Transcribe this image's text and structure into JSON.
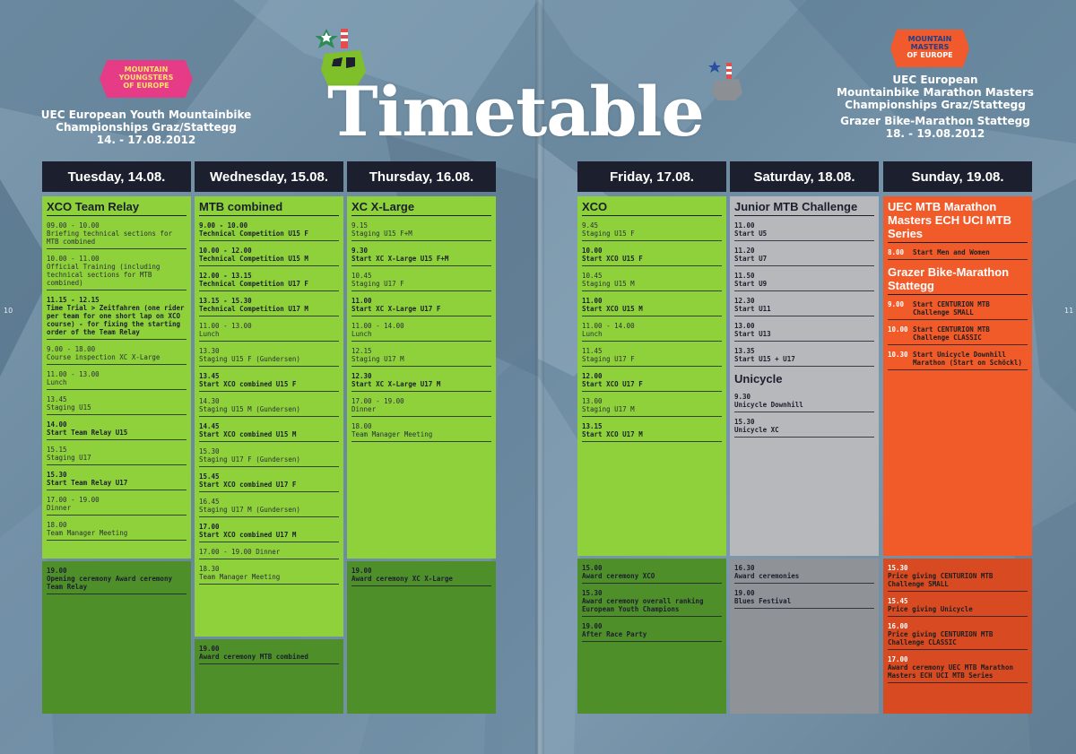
{
  "page_numbers": {
    "left": "10",
    "right": "11"
  },
  "left_badge": {
    "line1": "MOUNTAIN",
    "line2": "YOUNGSTERS",
    "line3": "OF EUROPE"
  },
  "right_badge": {
    "line1": "MOUNTAIN",
    "line2": "MASTERS",
    "line3": "OF EUROPE"
  },
  "left_event": {
    "line1": "UEC European Youth Mountainbike",
    "line2": "Championships Graz/Stattegg",
    "line3": "14. - 17.08.2012"
  },
  "right_event": {
    "line1": "UEC European",
    "line2": "Mountainbike Marathon Masters",
    "line3": "Championships Graz/Stattegg",
    "line4": "Grazer Bike-Marathon Stattegg",
    "line5": "18. - 19.08.2012"
  },
  "title": "Timetable",
  "colors": {
    "green_light": "#8fd13a",
    "green_dark": "#4f8f2a",
    "grey": "#b6b8bb",
    "orange": "#f15b2a",
    "header": "#1b1f2e"
  },
  "days": [
    {
      "label": "Tuesday, 14.08.",
      "title": "XCO Team Relay",
      "entries": [
        {
          "time": "09.00 - 10.00",
          "text": "Briefing technical sections for MTB combined",
          "bold": false
        },
        {
          "time": "10.00 - 11.00",
          "text": "Official Training (including technical sections for MTB combined)",
          "bold": false
        },
        {
          "time": "11.15 - 12.15",
          "text": "Time Trial > Zeitfahren (one rider per team for one short lap on XCO course) - for fixing the starting order of the Team Relay",
          "bold": true
        },
        {
          "time": "9.00 - 18.00",
          "text": "Course inspection XC X-Large",
          "bold": false
        },
        {
          "time": "11.00 - 13.00",
          "text": "Lunch",
          "bold": false
        },
        {
          "time": "13.45",
          "text": "Staging U15",
          "bold": false
        },
        {
          "time": "14.00",
          "text": "Start Team Relay U15",
          "bold": true
        },
        {
          "time": "15.15",
          "text": "Staging U17",
          "bold": false
        },
        {
          "time": "15.30",
          "text": "Start Team Relay U17",
          "bold": true
        },
        {
          "time": "17.00 - 19.00",
          "text": "Dinner",
          "bold": false
        },
        {
          "time": "18.00",
          "text": "Team Manager Meeting",
          "bold": false
        }
      ],
      "evening": [
        {
          "time": "19.00",
          "text": "Opening ceremony Award ceremony Team Relay",
          "bold": true
        }
      ]
    },
    {
      "label": "Wednesday, 15.08.",
      "title": "MTB combined",
      "entries": [
        {
          "time": "9.00 - 10.00",
          "text": "Technical Competition U15 F",
          "bold": true
        },
        {
          "time": "10.00 - 12.00",
          "text": "Technical Competition U15 M",
          "bold": true
        },
        {
          "time": "12.00 - 13.15",
          "text": "Technical Competition U17 F",
          "bold": true
        },
        {
          "time": "13.15 - 15.30",
          "text": "Technical Competition U17 M",
          "bold": true
        },
        {
          "time": "11.00 - 13.00",
          "text": "Lunch",
          "bold": false
        },
        {
          "time": "13.30",
          "text": "Staging U15 F (Gundersen)",
          "bold": false
        },
        {
          "time": "13.45",
          "text": "Start XCO combined U15 F",
          "bold": true
        },
        {
          "time": "14.30",
          "text": "Staging U15 M (Gundersen)",
          "bold": false
        },
        {
          "time": "14.45",
          "text": "Start XCO combined U15 M",
          "bold": true
        },
        {
          "time": "15.30",
          "text": "Staging U17 F (Gundersen)",
          "bold": false
        },
        {
          "time": "15.45",
          "text": "Start XCO combined U17 F",
          "bold": true
        },
        {
          "time": "16.45",
          "text": "Staging U17 M (Gundersen)",
          "bold": false
        },
        {
          "time": "17.00",
          "text": "Start XCO combined U17 M",
          "bold": true
        },
        {
          "time": "17.00 - 19.00",
          "text": "Dinner",
          "bold": false,
          "inline": true
        },
        {
          "time": "18.30",
          "text": "Team Manager Meeting",
          "bold": false
        }
      ],
      "evening": [
        {
          "time": "19.00",
          "text": "Award ceremony MTB combined",
          "bold": true
        }
      ]
    },
    {
      "label": "Thursday, 16.08.",
      "title": "XC X-Large",
      "entries": [
        {
          "time": "9.15",
          "text": "Staging U15 F+M",
          "bold": false
        },
        {
          "time": "9.30",
          "text": "Start XC X-Large U15 F+M",
          "bold": true
        },
        {
          "time": "10.45",
          "text": "Staging U17 F",
          "bold": false
        },
        {
          "time": "11.00",
          "text": "Start XC X-Large U17 F",
          "bold": true
        },
        {
          "time": "11.00 - 14.00",
          "text": "Lunch",
          "bold": false
        },
        {
          "time": "12.15",
          "text": "Staging U17 M",
          "bold": false
        },
        {
          "time": "12.30",
          "text": "Start XC X-Large U17 M",
          "bold": true
        },
        {
          "time": "17.00 - 19.00",
          "text": "Dinner",
          "bold": false
        },
        {
          "time": "18.00",
          "text": "Team Manager Meeting",
          "bold": false
        }
      ],
      "evening": [
        {
          "time": "19.00",
          "text": "Award ceremony XC X-Large",
          "bold": true
        }
      ]
    },
    {
      "label": "Friday, 17.08.",
      "title": "XCO",
      "entries": [
        {
          "time": "9.45",
          "text": "Staging U15 F",
          "bold": false
        },
        {
          "time": "10.00",
          "text": "Start XCO U15 F",
          "bold": true
        },
        {
          "time": "10.45",
          "text": "Staging U15 M",
          "bold": false
        },
        {
          "time": "11.00",
          "text": "Start XCO U15 M",
          "bold": true
        },
        {
          "time": "11.00 - 14.00",
          "text": "Lunch",
          "bold": false
        },
        {
          "time": "11.45",
          "text": "Staging U17 F",
          "bold": false
        },
        {
          "time": "12.00",
          "text": "Start XCO U17 F",
          "bold": true
        },
        {
          "time": "13.00",
          "text": "Staging U17 M",
          "bold": false
        },
        {
          "time": "13.15",
          "text": "Start XCO U17 M",
          "bold": true
        }
      ],
      "evening": [
        {
          "time": "15.00",
          "text": "Award ceremony XCO",
          "bold": true
        },
        {
          "time": "15.30",
          "text": "Award ceremony overall ranking European Youth Champions",
          "bold": true
        },
        {
          "time": "19.00",
          "text": "After Race Party",
          "bold": true
        }
      ]
    },
    {
      "label": "Saturday, 18.08.",
      "title": "Junior MTB Challenge",
      "entries": [
        {
          "time": "11.00",
          "text": "Start U5",
          "bold": true
        },
        {
          "time": "11.20",
          "text": "Start U7",
          "bold": true
        },
        {
          "time": "11.50",
          "text": "Start U9",
          "bold": true
        },
        {
          "time": "12.30",
          "text": "Start U11",
          "bold": true
        },
        {
          "time": "13.00",
          "text": "Start U13",
          "bold": true
        },
        {
          "time": "13.35",
          "text": "Start U15 + U17",
          "bold": true
        }
      ],
      "title2": "Unicycle",
      "entries2": [
        {
          "time": "9.30",
          "text": "Unicycle Downhill",
          "bold": true
        },
        {
          "time": "15.30",
          "text": "Unicycle XC",
          "bold": true
        }
      ],
      "evening": [
        {
          "time": "16.30",
          "text": "Award ceremonies",
          "bold": true
        },
        {
          "time": "19.00",
          "text": "Blues Festival",
          "bold": true
        }
      ]
    },
    {
      "label": "Sunday, 19.08.",
      "title": "UEC MTB Marathon Masters ECH UCI MTB Series",
      "entries": [
        {
          "time": "8.00",
          "text": "Start Men and Women",
          "bold": true
        }
      ],
      "title2": "Grazer Bike-Marathon Stattegg",
      "entries2": [
        {
          "time": "9.00",
          "text": "Start CENTURION MTB Challenge SMALL",
          "bold": true
        },
        {
          "time": "10.00",
          "text": "Start CENTURION MTB Challenge CLASSIC",
          "bold": true
        },
        {
          "time": "10.30",
          "text": "Start Unicycle Downhill Marathon (Start on Schöckl)",
          "bold": true
        }
      ],
      "evening": [
        {
          "time": "15.30",
          "text": "Price giving CENTURION MTB Challenge SMALL",
          "bold": true
        },
        {
          "time": "15.45",
          "text": "Price giving Unicycle",
          "bold": true
        },
        {
          "time": "16.00",
          "text": "Price giving CENTURION MTB Challenge CLASSIC",
          "bold": true
        },
        {
          "time": "17.00",
          "text": "Award ceremony UEC MTB Marathon Masters ECH UCI MTB Series",
          "bold": true
        }
      ]
    }
  ]
}
